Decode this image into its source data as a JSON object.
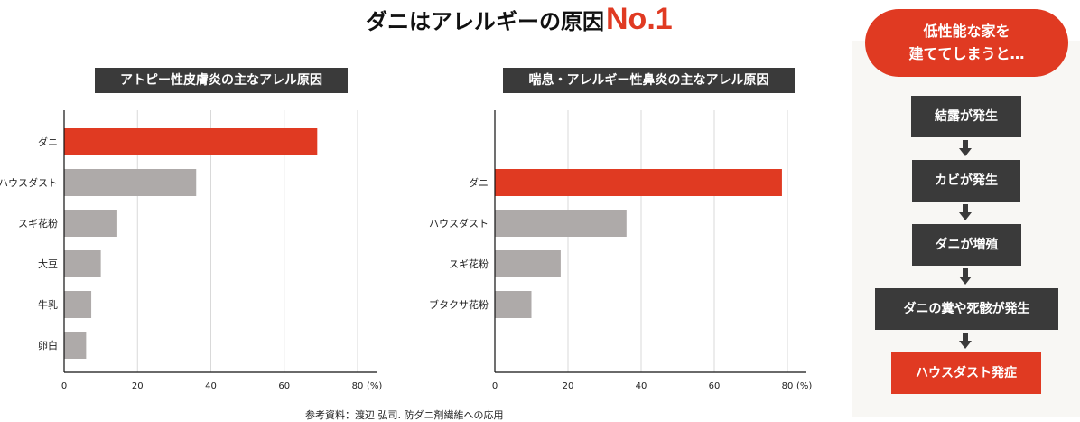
{
  "title": {
    "main": "ダニはアレルギーの原因",
    "highlight": "No.1"
  },
  "caption": "参考資料：渡辺 弘司. 防ダニ剤繊維への応用",
  "colors": {
    "accent": "#e03a22",
    "bar": "#aeaaa9",
    "dark": "#3a3a3a",
    "panel_bg": "#f8f7f4"
  },
  "chart_data": [
    {
      "type": "bar",
      "orientation": "horizontal",
      "title": "アトピー性皮膚炎の主なアレル原因",
      "categories": [
        "ダニ",
        "ハウスダスト",
        "スギ花粉",
        "大豆",
        "牛乳",
        "卵白"
      ],
      "values": [
        69,
        36,
        14.5,
        10,
        7.4,
        6
      ],
      "highlight": "ダニ",
      "xlim": [
        0,
        80
      ],
      "xticks": [
        0,
        20,
        40,
        60,
        80
      ],
      "xunit": "(%)",
      "grid": true
    },
    {
      "type": "bar",
      "orientation": "horizontal",
      "title": "喘息・アレルギー性鼻炎の主なアレル原因",
      "categories": [
        "ダニ",
        "ハウスダスト",
        "スギ花粉",
        "ブタクサ花粉"
      ],
      "values": [
        78.5,
        36,
        18,
        10
      ],
      "highlight": "ダニ",
      "xlim": [
        0,
        80
      ],
      "xticks": [
        0,
        20,
        40,
        60,
        80
      ],
      "xunit": "(%)",
      "grid": true
    }
  ],
  "flow": {
    "header": [
      "低性能な家を",
      "建ててしまうと…"
    ],
    "steps": [
      "結露が発生",
      "カビが発生",
      "ダニが増殖",
      "ダニの糞や死骸が発生",
      "ハウスダスト発症"
    ]
  }
}
